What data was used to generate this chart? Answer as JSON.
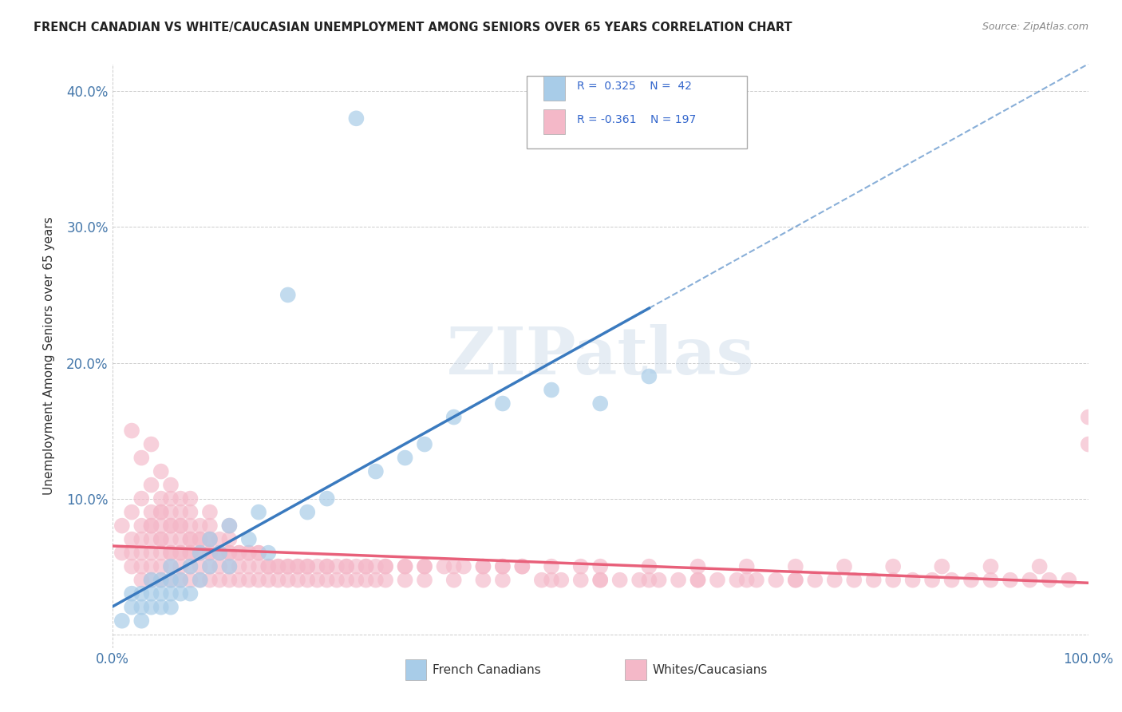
{
  "title": "FRENCH CANADIAN VS WHITE/CAUCASIAN UNEMPLOYMENT AMONG SENIORS OVER 65 YEARS CORRELATION CHART",
  "source": "Source: ZipAtlas.com",
  "ylabel": "Unemployment Among Seniors over 65 years",
  "xlim": [
    0.0,
    1.0
  ],
  "ylim": [
    -0.01,
    0.42
  ],
  "yticks": [
    0.0,
    0.1,
    0.2,
    0.3,
    0.4
  ],
  "ytick_labels": [
    "",
    "10.0%",
    "20.0%",
    "30.0%",
    "40.0%"
  ],
  "xtick_labels": [
    "0.0%",
    "100.0%"
  ],
  "blue_color": "#a8cce8",
  "pink_color": "#f4b8c8",
  "blue_line_color": "#3a7abf",
  "pink_line_color": "#e8607a",
  "legend_text_color": "#3366cc",
  "background_color": "#ffffff",
  "grid_color": "#cccccc",
  "french_canadians_x": [
    0.01,
    0.02,
    0.02,
    0.03,
    0.03,
    0.03,
    0.04,
    0.04,
    0.04,
    0.05,
    0.05,
    0.05,
    0.06,
    0.06,
    0.06,
    0.06,
    0.07,
    0.07,
    0.08,
    0.08,
    0.09,
    0.09,
    0.1,
    0.1,
    0.11,
    0.12,
    0.12,
    0.14,
    0.15,
    0.16,
    0.18,
    0.2,
    0.22,
    0.25,
    0.27,
    0.3,
    0.32,
    0.35,
    0.4,
    0.45,
    0.5,
    0.55
  ],
  "french_canadians_y": [
    0.01,
    0.02,
    0.03,
    0.01,
    0.02,
    0.03,
    0.02,
    0.03,
    0.04,
    0.02,
    0.03,
    0.04,
    0.02,
    0.03,
    0.04,
    0.05,
    0.03,
    0.04,
    0.03,
    0.05,
    0.04,
    0.06,
    0.05,
    0.07,
    0.06,
    0.05,
    0.08,
    0.07,
    0.09,
    0.06,
    0.25,
    0.09,
    0.1,
    0.38,
    0.12,
    0.13,
    0.14,
    0.16,
    0.17,
    0.18,
    0.17,
    0.19
  ],
  "white_caucasians_x": [
    0.01,
    0.01,
    0.02,
    0.02,
    0.02,
    0.02,
    0.03,
    0.03,
    0.03,
    0.03,
    0.03,
    0.04,
    0.04,
    0.04,
    0.04,
    0.04,
    0.04,
    0.05,
    0.05,
    0.05,
    0.05,
    0.05,
    0.05,
    0.05,
    0.06,
    0.06,
    0.06,
    0.06,
    0.06,
    0.06,
    0.06,
    0.07,
    0.07,
    0.07,
    0.07,
    0.07,
    0.07,
    0.08,
    0.08,
    0.08,
    0.08,
    0.08,
    0.08,
    0.09,
    0.09,
    0.09,
    0.09,
    0.1,
    0.1,
    0.1,
    0.1,
    0.1,
    0.11,
    0.11,
    0.11,
    0.12,
    0.12,
    0.12,
    0.12,
    0.13,
    0.13,
    0.14,
    0.14,
    0.15,
    0.15,
    0.16,
    0.17,
    0.18,
    0.19,
    0.2,
    0.21,
    0.22,
    0.23,
    0.24,
    0.25,
    0.26,
    0.27,
    0.28,
    0.3,
    0.32,
    0.34,
    0.36,
    0.38,
    0.4,
    0.42,
    0.44,
    0.46,
    0.48,
    0.5,
    0.52,
    0.54,
    0.56,
    0.58,
    0.6,
    0.62,
    0.64,
    0.66,
    0.68,
    0.7,
    0.72,
    0.74,
    0.76,
    0.78,
    0.8,
    0.82,
    0.84,
    0.86,
    0.88,
    0.9,
    0.92,
    0.94,
    0.96,
    0.98,
    1.0,
    0.02,
    0.03,
    0.04,
    0.04,
    0.05,
    0.05,
    0.06,
    0.06,
    0.07,
    0.07,
    0.08,
    0.08,
    0.09,
    0.09,
    0.1,
    0.1,
    0.11,
    0.12,
    0.13,
    0.14,
    0.15,
    0.16,
    0.17,
    0.18,
    0.19,
    0.2,
    0.22,
    0.24,
    0.26,
    0.28,
    0.3,
    0.32,
    0.35,
    0.38,
    0.4,
    0.42,
    0.45,
    0.48,
    0.5,
    0.55,
    0.6,
    0.65,
    0.7,
    0.75,
    0.8,
    0.85,
    0.9,
    0.95,
    1.0,
    0.03,
    0.04,
    0.05,
    0.06,
    0.07,
    0.08,
    0.09,
    0.1,
    0.11,
    0.12,
    0.13,
    0.14,
    0.15,
    0.16,
    0.17,
    0.18,
    0.19,
    0.2,
    0.21,
    0.22,
    0.23,
    0.24,
    0.25,
    0.26,
    0.27,
    0.28,
    0.3,
    0.32,
    0.35,
    0.38,
    0.4,
    0.45,
    0.5,
    0.55,
    0.6,
    0.65,
    0.7
  ],
  "white_caucasians_y": [
    0.06,
    0.08,
    0.05,
    0.06,
    0.07,
    0.09,
    0.05,
    0.06,
    0.07,
    0.08,
    0.1,
    0.05,
    0.06,
    0.07,
    0.08,
    0.09,
    0.11,
    0.05,
    0.06,
    0.07,
    0.08,
    0.09,
    0.1,
    0.12,
    0.05,
    0.06,
    0.07,
    0.08,
    0.09,
    0.1,
    0.11,
    0.05,
    0.06,
    0.07,
    0.08,
    0.09,
    0.1,
    0.05,
    0.06,
    0.07,
    0.08,
    0.09,
    0.1,
    0.05,
    0.06,
    0.07,
    0.08,
    0.05,
    0.06,
    0.07,
    0.08,
    0.09,
    0.05,
    0.06,
    0.07,
    0.05,
    0.06,
    0.07,
    0.08,
    0.05,
    0.06,
    0.05,
    0.06,
    0.05,
    0.06,
    0.05,
    0.05,
    0.05,
    0.05,
    0.05,
    0.05,
    0.05,
    0.05,
    0.05,
    0.05,
    0.05,
    0.05,
    0.05,
    0.05,
    0.05,
    0.05,
    0.05,
    0.05,
    0.05,
    0.05,
    0.04,
    0.04,
    0.04,
    0.04,
    0.04,
    0.04,
    0.04,
    0.04,
    0.04,
    0.04,
    0.04,
    0.04,
    0.04,
    0.04,
    0.04,
    0.04,
    0.04,
    0.04,
    0.04,
    0.04,
    0.04,
    0.04,
    0.04,
    0.04,
    0.04,
    0.04,
    0.04,
    0.04,
    0.16,
    0.15,
    0.13,
    0.08,
    0.14,
    0.07,
    0.09,
    0.06,
    0.08,
    0.06,
    0.08,
    0.06,
    0.07,
    0.06,
    0.07,
    0.06,
    0.07,
    0.06,
    0.06,
    0.06,
    0.06,
    0.06,
    0.05,
    0.05,
    0.05,
    0.05,
    0.05,
    0.05,
    0.05,
    0.05,
    0.05,
    0.05,
    0.05,
    0.05,
    0.05,
    0.05,
    0.05,
    0.05,
    0.05,
    0.05,
    0.05,
    0.05,
    0.05,
    0.05,
    0.05,
    0.05,
    0.05,
    0.05,
    0.05,
    0.14,
    0.04,
    0.04,
    0.04,
    0.04,
    0.04,
    0.04,
    0.04,
    0.04,
    0.04,
    0.04,
    0.04,
    0.04,
    0.04,
    0.04,
    0.04,
    0.04,
    0.04,
    0.04,
    0.04,
    0.04,
    0.04,
    0.04,
    0.04,
    0.04,
    0.04,
    0.04,
    0.04,
    0.04,
    0.04,
    0.04,
    0.04,
    0.04,
    0.04,
    0.04,
    0.04,
    0.04,
    0.04
  ]
}
